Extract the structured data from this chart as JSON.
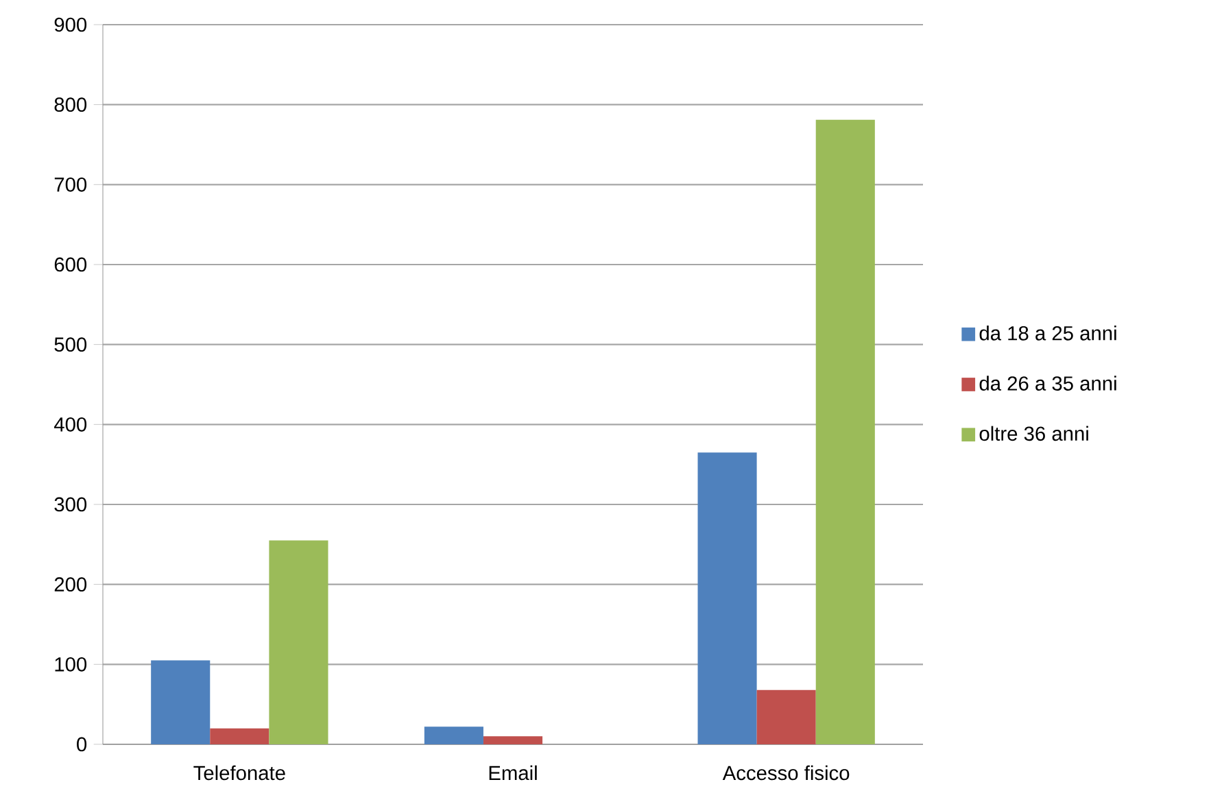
{
  "chart_data": {
    "type": "bar",
    "categories": [
      "Telefonate",
      "Email",
      "Accesso fisico"
    ],
    "series": [
      {
        "name": "da 18 a 25 anni",
        "color": "#4f81bd",
        "values": [
          105,
          22,
          365
        ]
      },
      {
        "name": "da 26 a 35 anni",
        "color": "#c0504d",
        "values": [
          20,
          10,
          68
        ]
      },
      {
        "name": "oltre 36 anni",
        "color": "#9bbb59",
        "values": [
          255,
          0,
          781
        ]
      }
    ],
    "ylim": [
      0,
      900
    ],
    "yticks": [
      0,
      100,
      200,
      300,
      400,
      500,
      600,
      700,
      800,
      900
    ],
    "grid": "y",
    "legend": "right"
  }
}
